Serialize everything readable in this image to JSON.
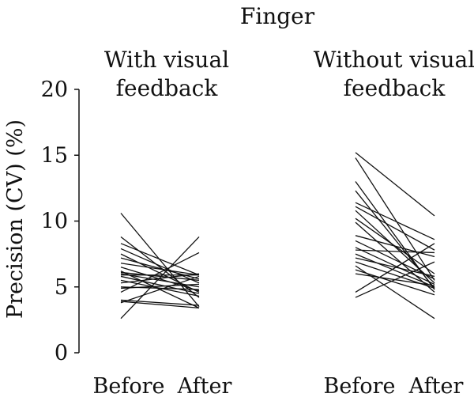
{
  "chart_data": {
    "type": "line",
    "title": "Finger",
    "ylabel": "Precision (CV) (%)",
    "ylim": [
      0,
      20
    ],
    "yticks": [
      0,
      5,
      10,
      15,
      20
    ],
    "grid": false,
    "categories": [
      "Before",
      "After"
    ],
    "panels": [
      {
        "title_lines": [
          "With visual",
          "feedback"
        ],
        "categories": [
          "Before",
          "After"
        ],
        "pairs": [
          [
            10.6,
            3.5
          ],
          [
            8.8,
            4.2
          ],
          [
            8.3,
            5.9
          ],
          [
            7.9,
            5.3
          ],
          [
            7.5,
            4.6
          ],
          [
            7.2,
            5.6
          ],
          [
            6.8,
            5.9
          ],
          [
            6.5,
            4.7
          ],
          [
            6.2,
            3.4
          ],
          [
            6.1,
            5.5
          ],
          [
            6.0,
            5.0
          ],
          [
            5.9,
            5.9
          ],
          [
            5.8,
            4.5
          ],
          [
            5.5,
            4.3
          ],
          [
            5.3,
            6.0
          ],
          [
            5.0,
            4.8
          ],
          [
            4.9,
            5.2
          ],
          [
            4.6,
            7.6
          ],
          [
            4.0,
            3.6
          ],
          [
            3.9,
            3.4
          ],
          [
            3.8,
            5.8
          ],
          [
            2.6,
            8.8
          ]
        ]
      },
      {
        "title_lines": [
          "Without visual",
          "feedback"
        ],
        "categories": [
          "Before",
          "After"
        ],
        "pairs": [
          [
            15.2,
            10.4
          ],
          [
            14.8,
            5.5
          ],
          [
            13.0,
            4.8
          ],
          [
            12.3,
            4.9
          ],
          [
            11.4,
            8.6
          ],
          [
            11.1,
            7.8
          ],
          [
            10.8,
            5.3
          ],
          [
            10.2,
            6.0
          ],
          [
            9.9,
            4.6
          ],
          [
            8.9,
            7.3
          ],
          [
            8.5,
            5.6
          ],
          [
            8.0,
            5.2
          ],
          [
            7.8,
            7.6
          ],
          [
            7.5,
            5.0
          ],
          [
            7.2,
            5.8
          ],
          [
            6.9,
            4.9
          ],
          [
            6.6,
            2.6
          ],
          [
            6.3,
            4.4
          ],
          [
            6.0,
            5.1
          ],
          [
            4.6,
            8.3
          ],
          [
            4.2,
            6.9
          ]
        ]
      }
    ]
  }
}
